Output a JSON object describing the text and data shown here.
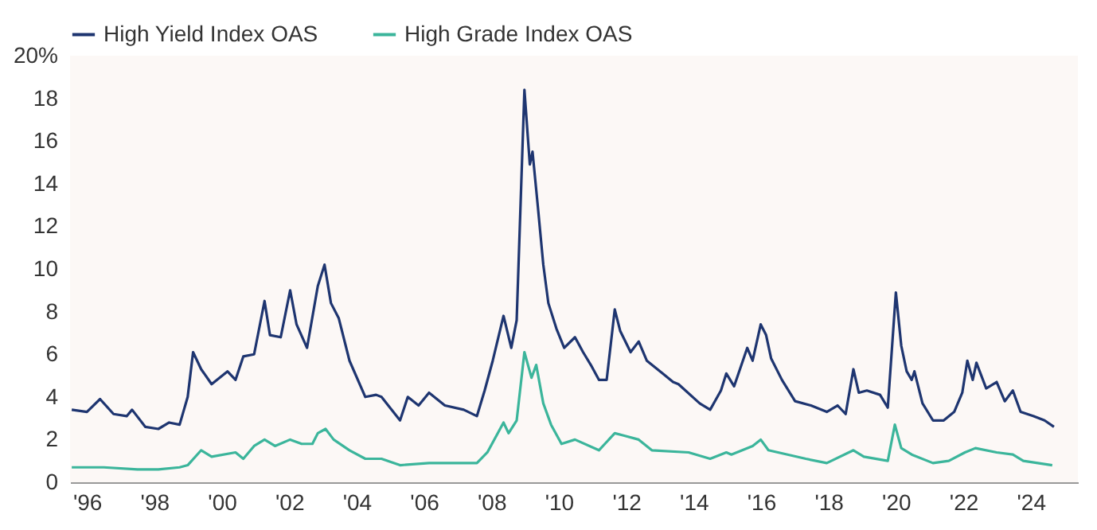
{
  "chart_data": {
    "type": "line",
    "xlim": [
      1995.5,
      2025.4
    ],
    "ylim": [
      0,
      20
    ],
    "xticks": [
      {
        "value": 1996,
        "label": "'96"
      },
      {
        "value": 1998,
        "label": "'98"
      },
      {
        "value": 2000,
        "label": "'00"
      },
      {
        "value": 2002,
        "label": "'02"
      },
      {
        "value": 2004,
        "label": "'04"
      },
      {
        "value": 2006,
        "label": "'06"
      },
      {
        "value": 2008,
        "label": "'08"
      },
      {
        "value": 2010,
        "label": "'10"
      },
      {
        "value": 2012,
        "label": "'12"
      },
      {
        "value": 2014,
        "label": "'14"
      },
      {
        "value": 2016,
        "label": "'16"
      },
      {
        "value": 2018,
        "label": "'18"
      },
      {
        "value": 2020,
        "label": "'20"
      },
      {
        "value": 2022,
        "label": "'22"
      },
      {
        "value": 2024,
        "label": "'24"
      }
    ],
    "yticks": [
      0,
      2,
      4,
      6,
      8,
      10,
      12,
      14,
      16,
      18,
      {
        "value": 20,
        "label": "20%"
      }
    ],
    "grid": false,
    "legend": "top left",
    "series": [
      {
        "name": "High Yield Index OAS",
        "color": "#1e3570",
        "x": [
          1995.55,
          1996.0,
          1996.39,
          1996.79,
          1997.18,
          1997.34,
          1997.73,
          1998.12,
          1998.44,
          1998.75,
          1998.99,
          1999.15,
          1999.39,
          1999.7,
          2000.17,
          2000.41,
          2000.64,
          2000.96,
          2001.27,
          2001.43,
          2001.75,
          2002.03,
          2002.22,
          2002.53,
          2002.85,
          2003.05,
          2003.24,
          2003.47,
          2003.79,
          2004.26,
          2004.58,
          2004.74,
          2005.29,
          2005.52,
          2005.84,
          2006.15,
          2006.62,
          2007.18,
          2007.57,
          2007.8,
          2008.04,
          2008.36,
          2008.59,
          2008.75,
          2008.98,
          2009.14,
          2009.22,
          2009.38,
          2009.54,
          2009.69,
          2009.93,
          2010.16,
          2010.48,
          2010.72,
          2010.95,
          2011.19,
          2011.42,
          2011.66,
          2011.82,
          2012.13,
          2012.37,
          2012.61,
          2013.08,
          2013.39,
          2013.55,
          2014.18,
          2014.49,
          2014.81,
          2014.97,
          2015.2,
          2015.59,
          2015.75,
          2015.99,
          2016.15,
          2016.3,
          2016.62,
          2017.01,
          2017.48,
          2017.95,
          2018.27,
          2018.51,
          2018.74,
          2018.9,
          2019.14,
          2019.53,
          2019.76,
          2020.0,
          2020.16,
          2020.32,
          2020.47,
          2020.55,
          2020.79,
          2021.1,
          2021.42,
          2021.73,
          2021.97,
          2022.12,
          2022.28,
          2022.39,
          2022.68,
          2022.99,
          2023.23,
          2023.47,
          2023.7,
          2024.09,
          2024.41,
          2024.69
        ],
        "values": [
          3.4,
          3.3,
          3.9,
          3.2,
          3.1,
          3.4,
          2.6,
          2.5,
          2.8,
          2.7,
          4.0,
          6.1,
          5.3,
          4.6,
          5.2,
          4.8,
          5.9,
          6.0,
          8.5,
          6.9,
          6.8,
          9.0,
          7.4,
          6.3,
          9.2,
          10.2,
          8.4,
          7.7,
          5.7,
          4.0,
          4.1,
          4.0,
          2.9,
          4.0,
          3.6,
          4.2,
          3.6,
          3.4,
          3.1,
          4.3,
          5.7,
          7.8,
          6.3,
          7.6,
          18.4,
          14.9,
          15.5,
          12.9,
          10.2,
          8.4,
          7.2,
          6.3,
          6.8,
          6.1,
          5.5,
          4.8,
          4.8,
          8.1,
          7.1,
          6.1,
          6.6,
          5.7,
          5.1,
          4.7,
          4.6,
          3.7,
          3.4,
          4.3,
          5.1,
          4.5,
          6.3,
          5.7,
          7.4,
          6.9,
          5.8,
          4.8,
          3.8,
          3.6,
          3.3,
          3.6,
          3.2,
          5.3,
          4.2,
          4.3,
          4.1,
          3.5,
          8.9,
          6.4,
          5.2,
          4.8,
          5.2,
          3.7,
          2.9,
          2.9,
          3.3,
          4.2,
          5.7,
          4.8,
          5.6,
          4.4,
          4.7,
          3.8,
          4.3,
          3.3,
          3.1,
          2.9,
          2.6
        ]
      },
      {
        "name": "High Grade Index OAS",
        "color": "#3bb59b",
        "x": [
          1995.55,
          1996.5,
          1997.5,
          1998.12,
          1998.75,
          1998.99,
          1999.39,
          1999.7,
          2000.41,
          2000.64,
          2000.96,
          2001.27,
          2001.58,
          2002.03,
          2002.37,
          2002.69,
          2002.85,
          2003.08,
          2003.32,
          2003.79,
          2004.26,
          2004.74,
          2005.29,
          2006.15,
          2007.57,
          2007.88,
          2008.36,
          2008.51,
          2008.75,
          2008.98,
          2009.19,
          2009.33,
          2009.54,
          2009.77,
          2010.08,
          2010.48,
          2011.19,
          2011.66,
          2011.9,
          2012.37,
          2012.76,
          2013.85,
          2014.49,
          2014.97,
          2015.12,
          2015.75,
          2015.99,
          2016.22,
          2017.33,
          2017.95,
          2018.74,
          2019.05,
          2019.76,
          2019.97,
          2020.16,
          2020.47,
          2021.1,
          2021.57,
          2022.05,
          2022.36,
          2022.99,
          2023.47,
          2023.78,
          2024.64
        ],
        "values": [
          0.7,
          0.7,
          0.6,
          0.6,
          0.7,
          0.8,
          1.5,
          1.2,
          1.4,
          1.1,
          1.7,
          2.0,
          1.7,
          2.0,
          1.8,
          1.8,
          2.3,
          2.5,
          2.0,
          1.5,
          1.1,
          1.1,
          0.8,
          0.9,
          0.9,
          1.4,
          2.8,
          2.3,
          2.9,
          6.1,
          4.9,
          5.5,
          3.7,
          2.7,
          1.8,
          2.0,
          1.5,
          2.3,
          2.2,
          2.0,
          1.5,
          1.4,
          1.1,
          1.4,
          1.3,
          1.7,
          2.0,
          1.5,
          1.1,
          0.9,
          1.5,
          1.2,
          1.0,
          2.7,
          1.6,
          1.3,
          0.9,
          1.0,
          1.4,
          1.6,
          1.4,
          1.3,
          1.0,
          0.8
        ]
      }
    ]
  }
}
